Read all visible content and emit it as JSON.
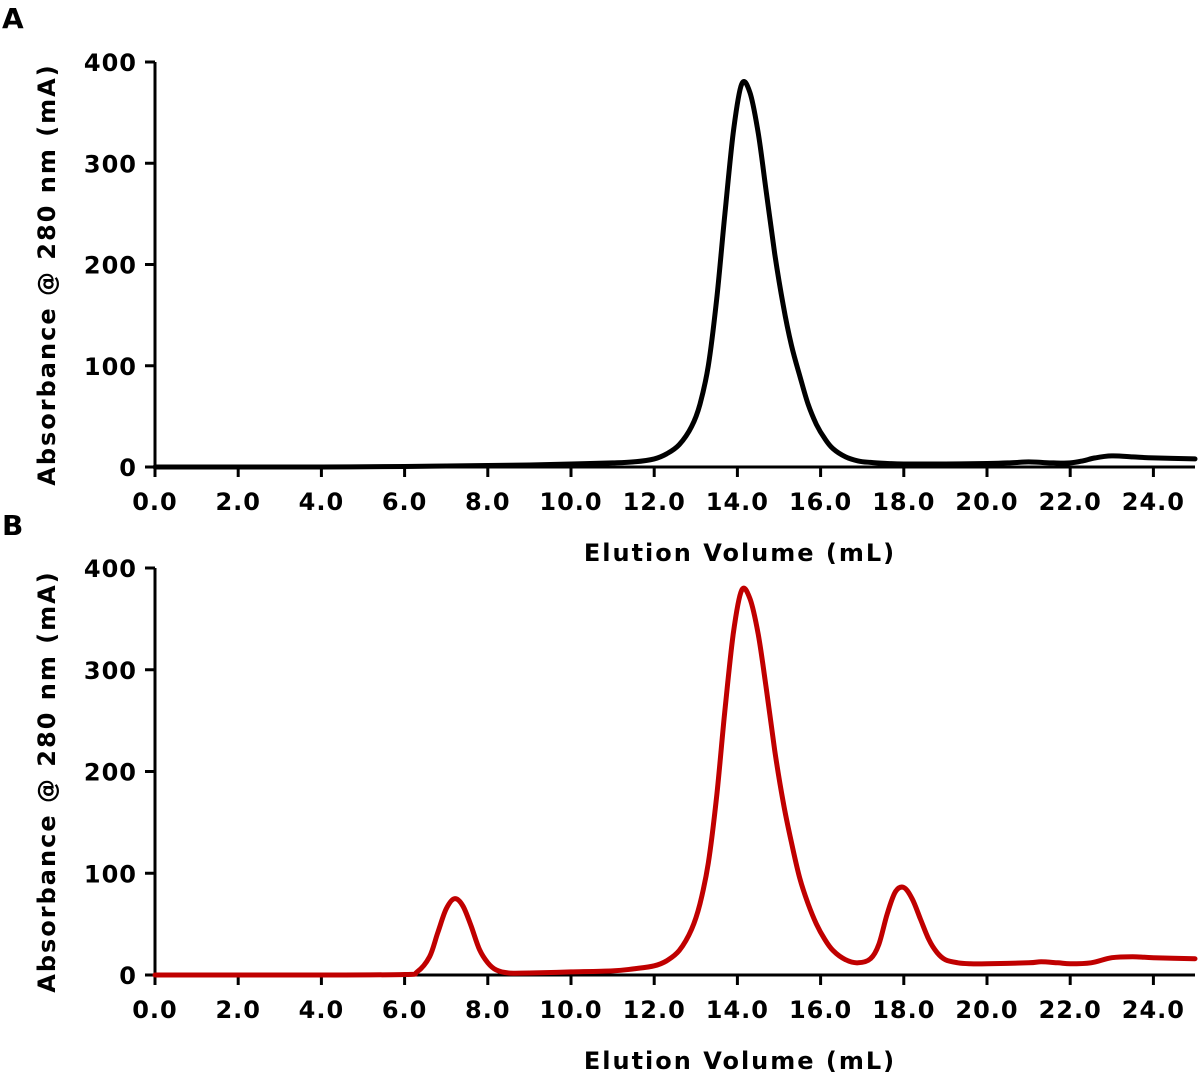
{
  "chart_data": [
    {
      "type": "line",
      "panel_label": "A",
      "xlabel": "Elution Volume (mL)",
      "ylabel": "Absorbance @ 280 nm (mA)",
      "xlim": [
        0,
        25
      ],
      "ylim": [
        0,
        400
      ],
      "x_ticks": [
        "0.0",
        "2.0",
        "4.0",
        "6.0",
        "8.0",
        "10.0",
        "12.0",
        "14.0",
        "16.0",
        "18.0",
        "20.0",
        "22.0",
        "24.0"
      ],
      "y_ticks": [
        "0",
        "100",
        "200",
        "300",
        "400"
      ],
      "series": [
        {
          "color": "#000000",
          "x": [
            0,
            2,
            4,
            6,
            7,
            8,
            9,
            10,
            11,
            11.5,
            12,
            12.3,
            12.6,
            12.9,
            13.1,
            13.3,
            13.5,
            13.7,
            13.9,
            14.1,
            14.3,
            14.5,
            14.7,
            14.9,
            15.1,
            15.3,
            15.5,
            15.7,
            15.9,
            16.1,
            16.3,
            16.6,
            16.9,
            17.2,
            17.6,
            18,
            19,
            20,
            20.5,
            21,
            21.3,
            21.6,
            22,
            22.3,
            22.6,
            23,
            23.5,
            24,
            25
          ],
          "y": [
            0,
            0,
            0,
            0.5,
            1,
            1.5,
            2,
            3,
            4,
            5,
            8,
            13,
            22,
            40,
            62,
            100,
            165,
            250,
            330,
            378,
            370,
            330,
            270,
            210,
            160,
            120,
            90,
            62,
            42,
            28,
            18,
            10,
            6,
            4.5,
            3.5,
            3,
            3,
            3.5,
            4,
            5,
            4.5,
            4,
            4,
            6,
            9,
            11,
            10,
            9,
            8
          ]
        }
      ]
    },
    {
      "type": "line",
      "panel_label": "B",
      "xlabel": "Elution Volume (mL)",
      "ylabel": "Absorbance @ 280 nm (mA)",
      "xlim": [
        0,
        25
      ],
      "ylim": [
        0,
        400
      ],
      "x_ticks": [
        "0.0",
        "2.0",
        "4.0",
        "6.0",
        "8.0",
        "10.0",
        "12.0",
        "14.0",
        "16.0",
        "18.0",
        "20.0",
        "22.0",
        "24.0"
      ],
      "y_ticks": [
        "0",
        "100",
        "200",
        "300",
        "400"
      ],
      "series": [
        {
          "color": "#c00000",
          "x": [
            0,
            2,
            4,
            6,
            6.3,
            6.6,
            6.8,
            7,
            7.2,
            7.4,
            7.6,
            7.8,
            8,
            8.2,
            8.5,
            9,
            10,
            11,
            11.5,
            12,
            12.3,
            12.6,
            12.9,
            13.1,
            13.3,
            13.5,
            13.7,
            13.9,
            14.1,
            14.3,
            14.5,
            14.7,
            14.9,
            15.1,
            15.3,
            15.5,
            15.7,
            15.9,
            16.1,
            16.3,
            16.6,
            16.9,
            17.2,
            17.4,
            17.6,
            17.8,
            18,
            18.2,
            18.4,
            18.6,
            18.8,
            19,
            19.3,
            19.6,
            20,
            21,
            21.3,
            21.7,
            22,
            22.5,
            23,
            23.5,
            24,
            25
          ],
          "y": [
            0,
            0,
            0,
            0.5,
            3,
            18,
            42,
            65,
            75,
            68,
            48,
            25,
            12,
            5,
            2,
            2,
            3,
            4,
            6,
            9,
            14,
            24,
            45,
            70,
            110,
            175,
            260,
            335,
            378,
            370,
            335,
            280,
            220,
            170,
            130,
            95,
            70,
            50,
            35,
            24,
            15,
            12,
            16,
            30,
            60,
            82,
            86,
            75,
            55,
            35,
            22,
            15,
            12,
            11,
            11,
            12,
            13,
            12,
            11,
            12,
            17,
            18,
            17,
            16
          ]
        }
      ]
    }
  ]
}
